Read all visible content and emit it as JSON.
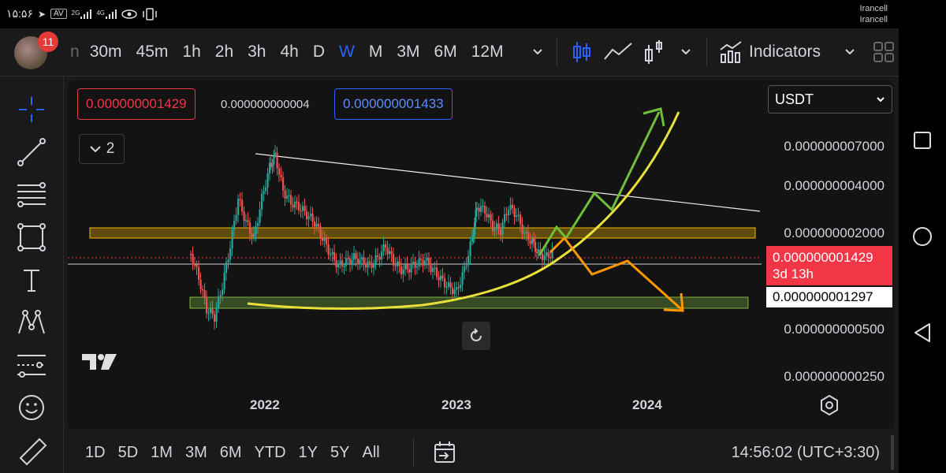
{
  "status_bar": {
    "time": "۱۵:۵۶",
    "indicators": [
      "AV",
      "2G",
      "4G"
    ],
    "carrier_lines": [
      "Irancell",
      "Irancell"
    ]
  },
  "toolbar": {
    "notification_count": "11",
    "cut_interval": "n",
    "intervals": [
      "30m",
      "45m",
      "1h",
      "2h",
      "3h",
      "4h",
      "D",
      "W",
      "M",
      "3M",
      "6M",
      "12M"
    ],
    "active_interval": "W",
    "indicators_label": "Indicators"
  },
  "chart": {
    "low_price": "0.000000001429",
    "change": "0.000000000004",
    "high_price": "0.000000001433",
    "collapse_count": "2",
    "currency": "USDT",
    "price_ticks": [
      "0.000000007000",
      "0.000000004000",
      "0.000000002000",
      "0.000000000500",
      "0.000000000250"
    ],
    "last_price": "0.000000001429",
    "countdown": "3d 13h",
    "line_price": "0.000000001297",
    "years": [
      "2022",
      "2023",
      "2024"
    ],
    "colors": {
      "up": "#26a69a",
      "down": "#ef5350",
      "zone_upper": "#f0b400",
      "zone_lower": "#7cb342",
      "curve": "#e8e03a",
      "up_arrow": "#6fbf3a",
      "down_arrow": "#ff9800"
    }
  },
  "bottom_bar": {
    "ranges": [
      "1D",
      "5D",
      "1M",
      "3M",
      "6M",
      "YTD",
      "1Y",
      "5Y",
      "All"
    ],
    "clock": "14:56:02 (UTC+3:30)"
  }
}
